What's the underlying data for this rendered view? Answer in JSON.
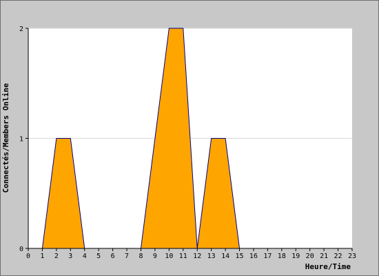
{
  "chart_data": {
    "type": "area",
    "x": [
      0,
      1,
      2,
      3,
      4,
      5,
      6,
      7,
      8,
      9,
      10,
      11,
      12,
      13,
      14,
      15,
      16,
      17,
      18,
      19,
      20,
      21,
      22,
      23
    ],
    "values": [
      0,
      0,
      1,
      1,
      0,
      0,
      0,
      0,
      0,
      1,
      2,
      2,
      0,
      1,
      1,
      0,
      0,
      0,
      0,
      0,
      0,
      0,
      0,
      0
    ],
    "xlabel": "Heure/Time",
    "ylabel": "Connectés/Members Online",
    "xlim": [
      0,
      23
    ],
    "ylim": [
      0,
      2
    ],
    "yticks": [
      0,
      1,
      2
    ],
    "grid": "horizontal",
    "colors": {
      "fill": "#ffa500",
      "line": "#00008b",
      "grid": "#d8d8d8",
      "background": "#c8c8c8",
      "plot": "#ffffff"
    }
  }
}
